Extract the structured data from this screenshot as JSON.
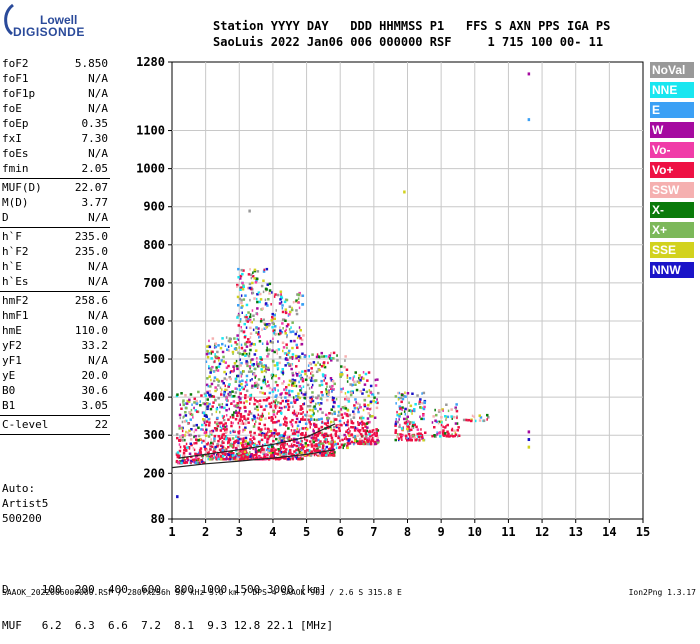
{
  "logo": {
    "top": "Lowell",
    "bottom": "DIGISONDE"
  },
  "header": {
    "line1": "Station YYYY DAY   DDD HHMMSS P1   FFS S AXN PPS IGA PS",
    "line2": "SaoLuis 2022 Jan06 006 000000 RSF     1 715 100 00- 11"
  },
  "params_groups": [
    [
      {
        "k": "foF2",
        "v": "5.850"
      },
      {
        "k": "foF1",
        "v": "N/A"
      },
      {
        "k": "foF1p",
        "v": "N/A"
      },
      {
        "k": "foE",
        "v": "N/A"
      },
      {
        "k": "foEp",
        "v": "0.35"
      },
      {
        "k": "fxI",
        "v": "7.30"
      },
      {
        "k": "foEs",
        "v": "N/A"
      },
      {
        "k": "fmin",
        "v": "2.05"
      }
    ],
    [
      {
        "k": "MUF(D)",
        "v": "22.07"
      },
      {
        "k": "M(D)",
        "v": "3.77"
      },
      {
        "k": "D",
        "v": "N/A"
      }
    ],
    [
      {
        "k": "h`F",
        "v": "235.0"
      },
      {
        "k": "h`F2",
        "v": "235.0"
      },
      {
        "k": "h`E",
        "v": "N/A"
      },
      {
        "k": "h`Es",
        "v": "N/A"
      }
    ],
    [
      {
        "k": "hmF2",
        "v": "258.6"
      },
      {
        "k": "hmF1",
        "v": "N/A"
      },
      {
        "k": "hmE",
        "v": "110.0"
      },
      {
        "k": "yF2",
        "v": "33.2"
      },
      {
        "k": "yF1",
        "v": "N/A"
      },
      {
        "k": "yE",
        "v": "20.0"
      },
      {
        "k": "B0",
        "v": "30.6"
      },
      {
        "k": "B1",
        "v": "3.05"
      }
    ],
    [
      {
        "k": "C-level",
        "v": "22"
      }
    ]
  ],
  "auto": [
    "Auto:",
    "Artist5",
    "500200"
  ],
  "legend": [
    {
      "label": "NoVal",
      "color": "#999999"
    },
    {
      "label": "NNE",
      "color": "#19e6f0"
    },
    {
      "label": "E",
      "color": "#3ba0f5"
    },
    {
      "label": "W",
      "color": "#a50aa0"
    },
    {
      "label": "Vo-",
      "color": "#f03ca8"
    },
    {
      "label": "Vo+",
      "color": "#ee1044"
    },
    {
      "label": "SSW",
      "color": "#f5b0b0"
    },
    {
      "label": "X-",
      "color": "#0a7a0a"
    },
    {
      "label": "X+",
      "color": "#7cb85a"
    },
    {
      "label": "SSE",
      "color": "#d2d21e"
    },
    {
      "label": "NNW",
      "color": "#1a14c8"
    }
  ],
  "muf_table": {
    "d_line": "D     100  200  400  600  800 1000 1500 3000 [km]",
    "muf_line": "MUF   6.2  6.3  6.6  7.2  8.1  9.3 12.8 22.1 [MHz]"
  },
  "footer": "SAAOK_2022006000000.RSF / 280fx256h 50 kHz 5.0 km / DPS-4 SAAOK 903 / 2.6 S 315.8 E",
  "footer_right": "Ion2Png 1.3.17",
  "chart_data": {
    "type": "scatter",
    "title": "",
    "xlabel": "",
    "ylabel": "",
    "xlim": [
      1,
      15
    ],
    "ylim": [
      80,
      1280
    ],
    "x_ticks": [
      1,
      2,
      3,
      4,
      5,
      6,
      7,
      8,
      9,
      10,
      11,
      12,
      13,
      14,
      15
    ],
    "y_ticks": [
      80,
      200,
      300,
      400,
      500,
      600,
      700,
      800,
      900,
      1000,
      1100,
      1280
    ],
    "grid": true,
    "clusters": [
      {
        "x": [
          1.1,
          2.0
        ],
        "y": [
          230,
          420
        ],
        "n": 220
      },
      {
        "x": [
          2.0,
          2.9
        ],
        "y": [
          240,
          560
        ],
        "n": 420
      },
      {
        "x": [
          2.9,
          3.9
        ],
        "y": [
          240,
          740
        ],
        "n": 620
      },
      {
        "x": [
          3.9,
          4.9
        ],
        "y": [
          240,
          680
        ],
        "n": 520
      },
      {
        "x": [
          4.9,
          5.8
        ],
        "y": [
          250,
          520
        ],
        "n": 380
      },
      {
        "x": [
          5.8,
          6.2
        ],
        "y": [
          270,
          520
        ],
        "n": 90
      },
      {
        "x": [
          6.2,
          7.1
        ],
        "y": [
          280,
          470
        ],
        "n": 230
      },
      {
        "x": [
          7.6,
          8.5
        ],
        "y": [
          290,
          420
        ],
        "n": 150
      },
      {
        "x": [
          8.7,
          9.5
        ],
        "y": [
          300,
          390
        ],
        "n": 80
      },
      {
        "x": [
          9.6,
          10.5
        ],
        "y": [
          340,
          360
        ],
        "n": 18
      }
    ],
    "cluster_core_color": "#ee1044",
    "sparse_points": [
      {
        "x": 11.6,
        "y": 1250,
        "color": "#a50aa0"
      },
      {
        "x": 11.6,
        "y": 1130,
        "color": "#3ba0f5"
      },
      {
        "x": 11.6,
        "y": 310,
        "color": "#a50aa0"
      },
      {
        "x": 11.6,
        "y": 290,
        "color": "#1a14c8"
      },
      {
        "x": 11.6,
        "y": 270,
        "color": "#d2d21e"
      },
      {
        "x": 7.9,
        "y": 940,
        "color": "#d2d21e"
      },
      {
        "x": 1.15,
        "y": 140,
        "color": "#1a14c8"
      },
      {
        "x": 3.3,
        "y": 890,
        "color": "#999999"
      }
    ],
    "trace_lines": [
      {
        "x": [
          1.0,
          2.0,
          3.0,
          4.0,
          5.0,
          5.85
        ],
        "y": [
          215,
          225,
          232,
          240,
          250,
          262
        ],
        "color": "#222222"
      },
      {
        "x": [
          1.2,
          2.0,
          3.0,
          4.0,
          5.0,
          5.85
        ],
        "y": [
          240,
          250,
          262,
          276,
          295,
          330
        ],
        "color": "#222222"
      }
    ]
  }
}
